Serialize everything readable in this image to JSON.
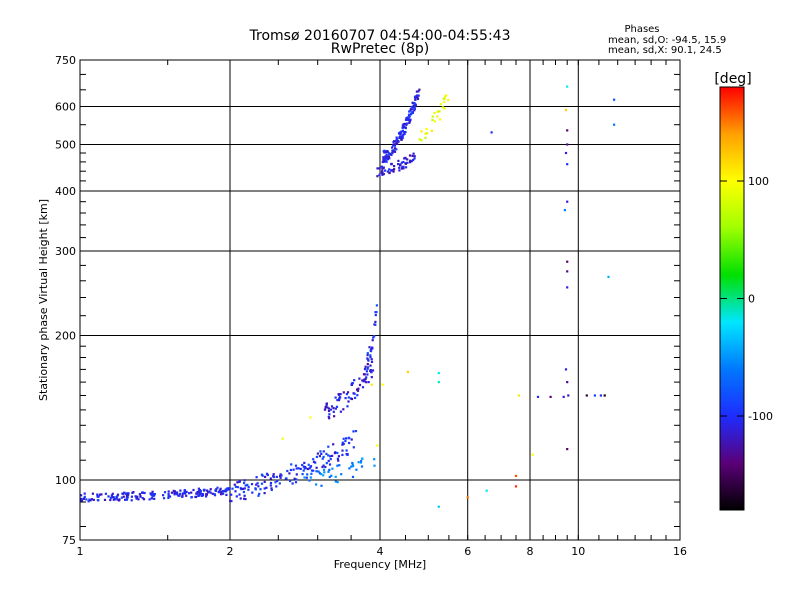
{
  "chart_data": {
    "type": "scatter",
    "title_line1": "Tromsø 20160707 04:54:00-04:55:43",
    "title_line2": "RwPretec (8p)",
    "stats": {
      "header": "Phases",
      "line_o": "mean, sd,O: -94.5, 15.9",
      "line_x": "mean, sd,X:  90.1, 24.5"
    },
    "xlabel": "Frequency [MHz]",
    "ylabel": "Stationary phase Virtual Height [km]",
    "x_scale": "log",
    "y_scale": "log",
    "xlim": [
      1,
      16
    ],
    "ylim": [
      75,
      750
    ],
    "x_ticks": [
      {
        "value": 1,
        "label": "1"
      },
      {
        "value": 2,
        "label": "2"
      },
      {
        "value": 4,
        "label": "4"
      },
      {
        "value": 6,
        "label": "6"
      },
      {
        "value": 8,
        "label": "8"
      },
      {
        "value": 10,
        "label": "10"
      },
      {
        "value": 16,
        "label": "16"
      }
    ],
    "y_ticks": [
      {
        "value": 75,
        "label": "75"
      },
      {
        "value": 100,
        "label": "100"
      },
      {
        "value": 200,
        "label": "200"
      },
      {
        "value": 300,
        "label": "300"
      },
      {
        "value": 400,
        "label": "400"
      },
      {
        "value": 500,
        "label": "500"
      },
      {
        "value": 600,
        "label": "600"
      },
      {
        "value": 750,
        "label": "750"
      }
    ],
    "grid_x": [
      2,
      4,
      6,
      8,
      10
    ],
    "grid_y": [
      100,
      200,
      300,
      400,
      500,
      600
    ],
    "colorbar": {
      "label": "[deg]",
      "range": [
        -180,
        180
      ],
      "ticks": [
        {
          "value": 100,
          "label": "100"
        },
        {
          "value": 0,
          "label": "0"
        },
        {
          "value": -100,
          "label": "-100"
        }
      ],
      "colors": [
        "#000000",
        "#5a0078",
        "#1e2cff",
        "#0078ff",
        "#00e6ff",
        "#00e000",
        "#a0ff00",
        "#ffff00",
        "#ffa000",
        "#ff0000"
      ]
    },
    "clusters": [
      {
        "name": "low trace",
        "f_from": 1.0,
        "f_to": 2.0,
        "h_from": 92,
        "h_to": 95,
        "count": 190,
        "jitter": 0.02,
        "phase": -105
      },
      {
        "name": "rising trace lower",
        "f_from": 2.0,
        "f_to": 3.6,
        "h_from": 95,
        "h_to": 122,
        "count": 150,
        "jitter": 0.05,
        "phase": -100
      },
      {
        "name": "rising trace upper",
        "f_from": 3.1,
        "f_to": 3.9,
        "h_from": 140,
        "h_to": 175,
        "count": 80,
        "jitter": 0.05,
        "phase": -110
      },
      {
        "name": "cusp",
        "f_from": 3.75,
        "f_to": 3.95,
        "h_from": 175,
        "h_to": 230,
        "count": 25,
        "jitter": 0.04,
        "phase": -100
      },
      {
        "name": "mid scatter",
        "f_from": 2.8,
        "f_to": 3.9,
        "h_from": 100,
        "h_to": 110,
        "count": 40,
        "jitter": 0.04,
        "phase": -60
      },
      {
        "name": "F layer base",
        "f_from": 3.95,
        "f_to": 4.7,
        "h_from": 440,
        "h_to": 470,
        "count": 60,
        "jitter": 0.025,
        "phase": -110
      },
      {
        "name": "F layer rise",
        "f_from": 4.05,
        "f_to": 4.8,
        "h_from": 470,
        "h_to": 650,
        "count": 150,
        "jitter": 0.03,
        "phase": -105
      },
      {
        "name": "F layer X",
        "f_from": 4.8,
        "f_to": 5.6,
        "h_from": 530,
        "h_to": 650,
        "count": 25,
        "jitter": 0.04,
        "phase": 90
      }
    ],
    "points": [
      {
        "f": 2.55,
        "h": 122,
        "phase": 95
      },
      {
        "f": 2.9,
        "h": 135,
        "phase": 100
      },
      {
        "f": 3.95,
        "h": 118,
        "phase": 100
      },
      {
        "f": 3.85,
        "h": 158,
        "phase": 110
      },
      {
        "f": 4.05,
        "h": 158,
        "phase": 100
      },
      {
        "f": 4.55,
        "h": 168,
        "phase": 120
      },
      {
        "f": 5.25,
        "h": 167,
        "phase": -20
      },
      {
        "f": 5.25,
        "h": 160,
        "phase": -10
      },
      {
        "f": 5.25,
        "h": 88,
        "phase": -30
      },
      {
        "f": 6.0,
        "h": 92,
        "phase": 150
      },
      {
        "f": 6.55,
        "h": 95,
        "phase": -20
      },
      {
        "f": 6.7,
        "h": 530,
        "phase": -100
      },
      {
        "f": 7.5,
        "h": 102,
        "phase": 160
      },
      {
        "f": 7.5,
        "h": 97,
        "phase": 170
      },
      {
        "f": 7.6,
        "h": 150,
        "phase": 110
      },
      {
        "f": 8.1,
        "h": 113,
        "phase": 100
      },
      {
        "f": 8.3,
        "h": 149,
        "phase": -100
      },
      {
        "f": 8.8,
        "h": 149,
        "phase": -140
      },
      {
        "f": 9.35,
        "h": 149,
        "phase": -110
      },
      {
        "f": 9.5,
        "h": 660,
        "phase": -20
      },
      {
        "f": 9.45,
        "h": 590,
        "phase": 120
      },
      {
        "f": 9.5,
        "h": 535,
        "phase": -140
      },
      {
        "f": 9.5,
        "h": 500,
        "phase": -130
      },
      {
        "f": 9.45,
        "h": 480,
        "phase": -110
      },
      {
        "f": 9.5,
        "h": 455,
        "phase": -100
      },
      {
        "f": 9.5,
        "h": 380,
        "phase": -110
      },
      {
        "f": 9.4,
        "h": 365,
        "phase": -60
      },
      {
        "f": 9.5,
        "h": 285,
        "phase": -140
      },
      {
        "f": 9.5,
        "h": 272,
        "phase": -130
      },
      {
        "f": 9.5,
        "h": 252,
        "phase": -110
      },
      {
        "f": 9.45,
        "h": 170,
        "phase": -110
      },
      {
        "f": 9.5,
        "h": 160,
        "phase": -130
      },
      {
        "f": 9.55,
        "h": 150,
        "phase": -120
      },
      {
        "f": 9.5,
        "h": 116,
        "phase": -140
      },
      {
        "f": 10.4,
        "h": 150,
        "phase": -160
      },
      {
        "f": 10.8,
        "h": 150,
        "phase": -90
      },
      {
        "f": 11.1,
        "h": 150,
        "phase": -100
      },
      {
        "f": 11.3,
        "h": 150,
        "phase": -170
      },
      {
        "f": 11.5,
        "h": 265,
        "phase": -40
      },
      {
        "f": 11.8,
        "h": 620,
        "phase": -80
      },
      {
        "f": 11.8,
        "h": 550,
        "phase": -60
      }
    ]
  }
}
